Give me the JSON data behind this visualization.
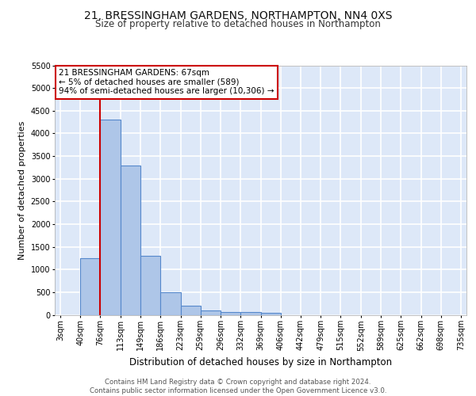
{
  "title_line1": "21, BRESSINGHAM GARDENS, NORTHAMPTON, NN4 0XS",
  "title_line2": "Size of property relative to detached houses in Northampton",
  "xlabel": "Distribution of detached houses by size in Northampton",
  "ylabel": "Number of detached properties",
  "bin_labels": [
    "3sqm",
    "40sqm",
    "76sqm",
    "113sqm",
    "149sqm",
    "186sqm",
    "223sqm",
    "259sqm",
    "296sqm",
    "332sqm",
    "369sqm",
    "406sqm",
    "442sqm",
    "479sqm",
    "515sqm",
    "552sqm",
    "589sqm",
    "625sqm",
    "662sqm",
    "698sqm",
    "735sqm"
  ],
  "bar_values": [
    0,
    1250,
    4300,
    3300,
    1300,
    490,
    200,
    100,
    60,
    55,
    50,
    0,
    0,
    0,
    0,
    0,
    0,
    0,
    0,
    0
  ],
  "bar_color": "#aec6e8",
  "bar_edge_color": "#5588cc",
  "background_color": "#dde8f8",
  "grid_color": "#ffffff",
  "annotation_box_text": "21 BRESSINGHAM GARDENS: 67sqm\n← 5% of detached houses are smaller (589)\n94% of semi-detached houses are larger (10,306) →",
  "annotation_box_color": "#ffffff",
  "annotation_box_edge_color": "#cc0000",
  "vline_x_bin": 1,
  "vline_color": "#cc0000",
  "ylim": [
    0,
    5500
  ],
  "yticks": [
    0,
    500,
    1000,
    1500,
    2000,
    2500,
    3000,
    3500,
    4000,
    4500,
    5000,
    5500
  ],
  "footer_text": "Contains HM Land Registry data © Crown copyright and database right 2024.\nContains public sector information licensed under the Open Government Licence v3.0.",
  "title_fontsize": 10,
  "subtitle_fontsize": 8.5,
  "tick_fontsize": 7,
  "annot_fontsize": 7.5,
  "ylabel_fontsize": 8,
  "xlabel_fontsize": 8.5,
  "bin_edges": [
    3,
    40,
    76,
    113,
    149,
    186,
    223,
    259,
    296,
    332,
    369,
    406,
    442,
    479,
    515,
    552,
    589,
    625,
    662,
    698,
    735
  ]
}
